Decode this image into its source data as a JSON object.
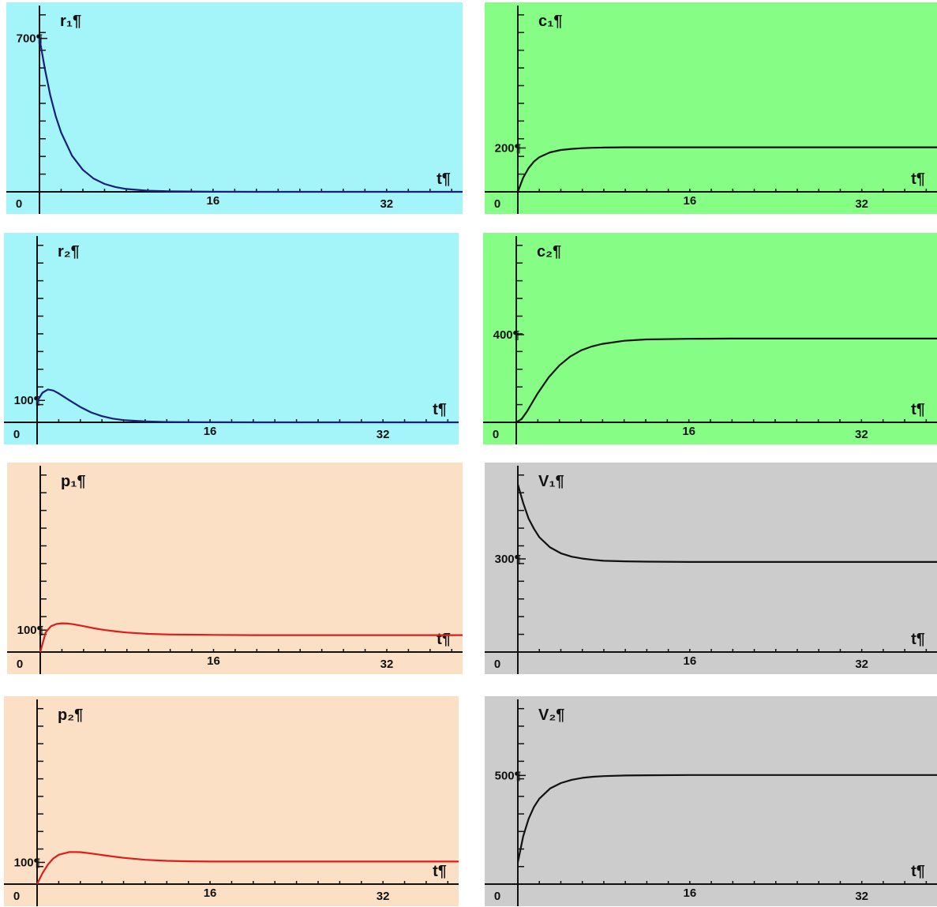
{
  "chart_data": [
    {
      "type": "line",
      "title": "r₁¶",
      "xlabel": "t¶",
      "origin_label": "0",
      "x_ticks": [
        "16",
        "32"
      ],
      "y_tick_label": "700¶",
      "y_tick_value": 700,
      "xlim": [
        0,
        39
      ],
      "ylim": [
        0,
        850
      ],
      "background": "#a3f5f9",
      "line_color": "#1a1f7a",
      "series": [
        {
          "x": [
            0,
            0.5,
            1,
            1.5,
            2,
            3,
            4,
            5,
            6,
            7,
            8,
            10,
            12,
            16,
            20,
            24,
            28,
            32,
            36,
            39
          ],
          "values": [
            700,
            560,
            440,
            345,
            270,
            165,
            100,
            60,
            36,
            22,
            13,
            5,
            2,
            0.5,
            0,
            0,
            0,
            0,
            0,
            0
          ]
        }
      ]
    },
    {
      "type": "line",
      "title": "c₁¶",
      "xlabel": "t¶",
      "origin_label": "0",
      "x_ticks": [
        "16",
        "32"
      ],
      "y_tick_label": "200¶",
      "y_tick_value": 200,
      "xlim": [
        0,
        39
      ],
      "ylim": [
        0,
        850
      ],
      "background": "#86fe86",
      "line_color": "#111111",
      "series": [
        {
          "x": [
            0,
            0.5,
            1,
            1.5,
            2,
            3,
            4,
            5,
            6,
            7,
            8,
            10,
            12,
            16,
            20,
            24,
            28,
            32,
            36,
            39
          ],
          "values": [
            0,
            65,
            108,
            138,
            158,
            180,
            191,
            196,
            199,
            201,
            202,
            203,
            203,
            203,
            203,
            203,
            203,
            203,
            203,
            203
          ]
        }
      ]
    },
    {
      "type": "line",
      "title": "r₂¶",
      "xlabel": "t¶",
      "origin_label": "0",
      "x_ticks": [
        "16",
        "32"
      ],
      "y_tick_label": "100¶",
      "y_tick_value": 100,
      "xlim": [
        0,
        39
      ],
      "ylim": [
        0,
        850
      ],
      "background": "#a3f5f9",
      "line_color": "#1a1f7a",
      "series": [
        {
          "x": [
            0,
            0.5,
            1,
            1.5,
            2,
            3,
            4,
            5,
            6,
            7,
            8,
            10,
            12,
            16,
            20,
            24,
            28,
            32,
            36,
            39
          ],
          "values": [
            95,
            135,
            150,
            145,
            132,
            100,
            70,
            45,
            28,
            17,
            10,
            4,
            1.5,
            0.3,
            0,
            0,
            0,
            0,
            0,
            0
          ]
        }
      ]
    },
    {
      "type": "line",
      "title": "c₂¶",
      "xlabel": "t¶",
      "origin_label": "0",
      "x_ticks": [
        "16",
        "32"
      ],
      "y_tick_label": "400¶",
      "y_tick_value": 400,
      "xlim": [
        0,
        39
      ],
      "ylim": [
        0,
        850
      ],
      "background": "#86fe86",
      "line_color": "#111111",
      "series": [
        {
          "x": [
            0,
            0.5,
            1,
            1.5,
            2,
            3,
            4,
            5,
            6,
            7,
            8,
            10,
            12,
            16,
            20,
            24,
            28,
            32,
            36,
            39
          ],
          "values": [
            0,
            15,
            50,
            92,
            133,
            205,
            260,
            300,
            328,
            346,
            358,
            372,
            378,
            381,
            382,
            382,
            382,
            382,
            382,
            382
          ]
        }
      ]
    },
    {
      "type": "line",
      "title": "p₁¶",
      "xlabel": "t¶",
      "origin_label": "0",
      "x_ticks": [
        "16",
        "32"
      ],
      "y_tick_label": "100¶",
      "y_tick_value": 100,
      "xlim": [
        0,
        39
      ],
      "ylim": [
        0,
        850
      ],
      "background": "#fce0c6",
      "line_color": "#dd1c1c",
      "series": [
        {
          "x": [
            0,
            0.5,
            1,
            1.5,
            2,
            2.5,
            3,
            4,
            5,
            6,
            7,
            8,
            10,
            12,
            16,
            20,
            24,
            28,
            32,
            36,
            39
          ],
          "values": [
            0,
            90,
            118,
            128,
            131,
            130,
            127,
            118,
            108,
            100,
            94,
            89,
            83,
            80,
            78,
            77,
            77,
            77,
            77,
            77,
            77
          ]
        }
      ]
    },
    {
      "type": "line",
      "title": "V₁¶",
      "xlabel": "t¶",
      "origin_label": "0",
      "x_ticks": [
        "16",
        "32"
      ],
      "y_tick_label": "300¶",
      "y_tick_value": 300,
      "xlim": [
        0,
        39
      ],
      "ylim": [
        0,
        600
      ],
      "background": "#cccccc",
      "line_color": "#111111",
      "series": [
        {
          "x": [
            0,
            0.5,
            1,
            1.5,
            2,
            3,
            4,
            5,
            6,
            7,
            8,
            10,
            12,
            16,
            20,
            24,
            28,
            32,
            36,
            39
          ],
          "values": [
            540,
            480,
            430,
            397,
            370,
            337,
            318,
            307,
            301,
            297,
            294,
            292,
            291,
            290,
            290,
            290,
            290,
            290,
            290,
            290
          ]
        }
      ]
    },
    {
      "type": "line",
      "title": "p₂¶",
      "xlabel": "t¶",
      "origin_label": "0",
      "x_ticks": [
        "16",
        "32"
      ],
      "y_tick_label": "100¶",
      "y_tick_value": 100,
      "xlim": [
        0,
        39
      ],
      "ylim": [
        0,
        850
      ],
      "background": "#fce0c6",
      "line_color": "#dd1c1c",
      "series": [
        {
          "x": [
            0,
            0.5,
            1,
            1.5,
            2,
            3,
            4,
            5,
            6,
            7,
            8,
            10,
            12,
            14,
            16,
            20,
            24,
            28,
            32,
            36,
            39
          ],
          "values": [
            0,
            50,
            90,
            118,
            135,
            148,
            147,
            141,
            134,
            127,
            121,
            112,
            107,
            105,
            104,
            104,
            104,
            104,
            104,
            104,
            104
          ]
        }
      ]
    },
    {
      "type": "line",
      "title": "V₂¶",
      "xlabel": "t¶",
      "origin_label": "0",
      "x_ticks": [
        "16",
        "32"
      ],
      "y_tick_label": "500¶",
      "y_tick_value": 500,
      "xlim": [
        0,
        39
      ],
      "ylim": [
        0,
        850
      ],
      "background": "#cccccc",
      "line_color": "#111111",
      "series": [
        {
          "x": [
            0,
            0.5,
            1,
            1.5,
            2,
            3,
            4,
            5,
            6,
            7,
            8,
            10,
            12,
            16,
            20,
            24,
            28,
            32,
            36,
            39
          ],
          "values": [
            100,
            220,
            300,
            355,
            393,
            440,
            465,
            480,
            489,
            494,
            497,
            500,
            501,
            502,
            502,
            502,
            502,
            502,
            502,
            502
          ]
        }
      ]
    }
  ]
}
